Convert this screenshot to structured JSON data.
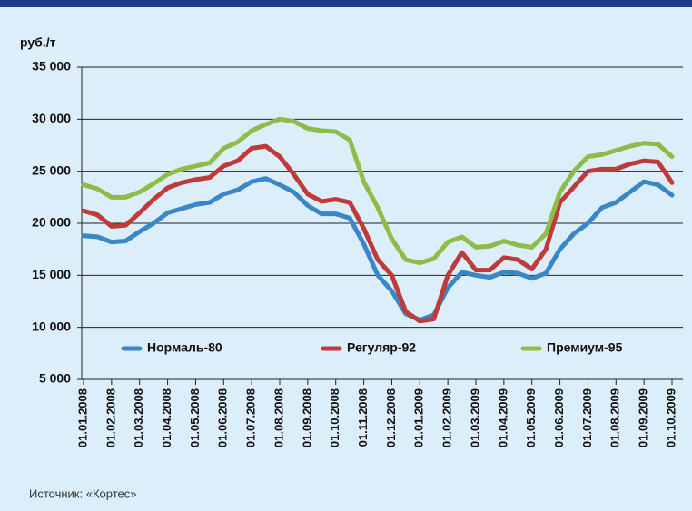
{
  "chart_data": {
    "type": "line",
    "ylabel": "руб./т",
    "source": "Источник: «Кортес»",
    "categories": [
      "01.01.2008",
      null,
      "01.02.2008",
      null,
      "01.03.2008",
      null,
      "01.04.2008",
      null,
      "01.05.2008",
      null,
      "01.06.2008",
      null,
      "01.07.2008",
      null,
      "01.08.2008",
      null,
      "01.09.2008",
      null,
      "01.10.2008",
      null,
      "01.11.2008",
      null,
      "01.12.2008",
      null,
      "01.01.2009",
      null,
      "01.02.2009",
      null,
      "01.03.2009",
      null,
      "01.04.2009",
      null,
      "01.05.2009",
      null,
      "01.06.2009",
      null,
      "01.07.2009",
      null,
      "01.08.2009",
      null,
      "01.09.2009",
      null,
      "01.10.2009"
    ],
    "series": [
      {
        "name": "Нормаль-80",
        "color": "#3a87c8",
        "values": [
          18800,
          18700,
          18200,
          18300,
          19200,
          20000,
          21000,
          21400,
          21800,
          22000,
          22800,
          23200,
          24000,
          24300,
          23700,
          23000,
          21700,
          20900,
          20900,
          20500,
          18000,
          15000,
          13500,
          11300,
          10700,
          11200,
          13800,
          15300,
          15000,
          14800,
          15300,
          15200,
          14700,
          15200,
          17500,
          19000,
          20000,
          21500,
          22000,
          23000,
          24000,
          23700,
          22700
        ]
      },
      {
        "name": "Регуляр-92",
        "color": "#c0393b",
        "values": [
          21200,
          20800,
          19700,
          19800,
          21000,
          22300,
          23400,
          23900,
          24200,
          24400,
          25500,
          26000,
          27200,
          27400,
          26400,
          24700,
          22800,
          22100,
          22300,
          22000,
          19500,
          16500,
          15000,
          11500,
          10600,
          10800,
          15000,
          17200,
          15500,
          15500,
          16700,
          16500,
          15600,
          17500,
          22000,
          23500,
          25000,
          25200,
          25200,
          25700,
          26000,
          25900,
          23900
        ]
      },
      {
        "name": "Премиум-95",
        "color": "#8dbd48",
        "values": [
          23700,
          23300,
          22500,
          22500,
          23000,
          23800,
          24700,
          25200,
          25500,
          25800,
          27200,
          27800,
          28900,
          29500,
          30000,
          29800,
          29100,
          28900,
          28800,
          28000,
          24000,
          21500,
          18500,
          16500,
          16200,
          16600,
          18200,
          18700,
          17700,
          17800,
          18300,
          17900,
          17700,
          19000,
          23000,
          25000,
          26400,
          26600,
          27000,
          27400,
          27700,
          27600,
          26400
        ]
      }
    ],
    "ylim": [
      5000,
      35000
    ],
    "yticks": [
      {
        "value": 5000,
        "label": "5 000"
      },
      {
        "value": 10000,
        "label": "10 000"
      },
      {
        "value": 15000,
        "label": "15 000"
      },
      {
        "value": 20000,
        "label": "20 000"
      },
      {
        "value": 25000,
        "label": "25 000"
      },
      {
        "value": 30000,
        "label": "30 000"
      },
      {
        "value": 35000,
        "label": "35 000"
      }
    ],
    "grid": true,
    "legend": "bottom"
  }
}
